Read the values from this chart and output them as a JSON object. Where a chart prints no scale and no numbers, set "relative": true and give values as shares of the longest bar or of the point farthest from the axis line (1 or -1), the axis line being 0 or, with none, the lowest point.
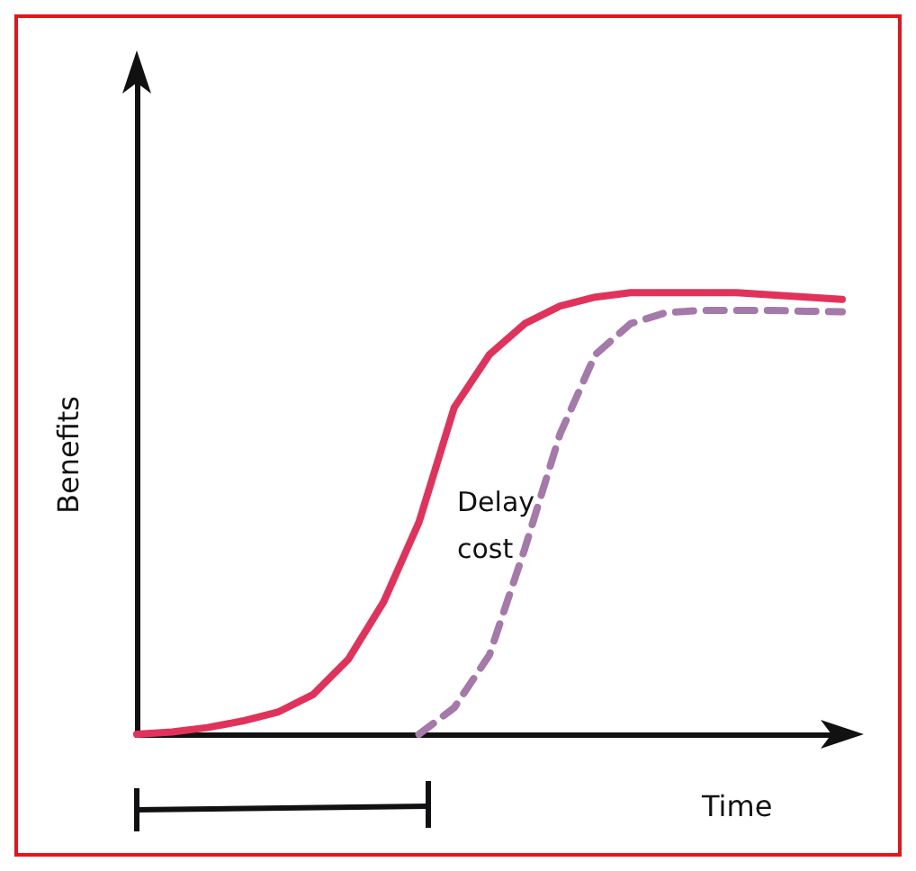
{
  "chart_data": {
    "type": "line",
    "relative": true,
    "xlabel": "Time",
    "ylabel": "Benefits",
    "annotations": [
      "Delay cost"
    ],
    "categories": [
      null,
      null,
      null,
      null,
      null,
      null,
      null,
      null,
      null,
      null,
      null,
      null,
      null,
      null,
      null,
      null,
      null,
      null,
      null,
      null,
      null
    ],
    "series": [
      {
        "color": "#e0325a",
        "line_style": "solid",
        "values": [
          0,
          0.005,
          0.015,
          0.03,
          0.05,
          0.09,
          0.17,
          0.3,
          0.48,
          0.74,
          0.86,
          0.93,
          0.97,
          0.99,
          1,
          1,
          1,
          1,
          0.995,
          0.99,
          0.985
        ]
      },
      {
        "color": "#a57aab",
        "line_style": "dashed",
        "values": [
          null,
          null,
          null,
          null,
          null,
          null,
          null,
          null,
          0,
          0.06,
          0.18,
          0.42,
          0.68,
          0.86,
          0.93,
          0.955,
          0.96,
          0.96,
          0.96,
          0.958,
          0.957
        ]
      }
    ]
  }
}
